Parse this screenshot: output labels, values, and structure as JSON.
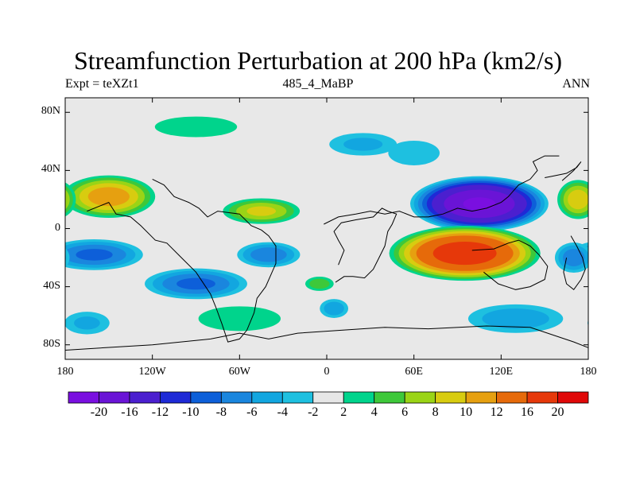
{
  "title": "Streamfunction Perturbation at 200 hPa (km2/s)",
  "subtitle_left": "Expt = teXZt1",
  "subtitle_center": "485_4_MaBP",
  "subtitle_right": "ANN",
  "map": {
    "projection": "cylindrical equidistant",
    "lon_range": [
      -180,
      180
    ],
    "lat_range": [
      -90,
      90
    ],
    "lon_ticks": [
      {
        "value": -180,
        "label": "180"
      },
      {
        "value": -120,
        "label": "120W"
      },
      {
        "value": -60,
        "label": "60W"
      },
      {
        "value": 0,
        "label": "0"
      },
      {
        "value": 60,
        "label": "60E"
      },
      {
        "value": 120,
        "label": "120E"
      },
      {
        "value": 180,
        "label": "180"
      }
    ],
    "lat_ticks": [
      {
        "value": 80,
        "label": "80N"
      },
      {
        "value": 40,
        "label": "40N"
      },
      {
        "value": 0,
        "label": "0"
      },
      {
        "value": -40,
        "label": "40S"
      },
      {
        "value": -80,
        "label": "80S"
      }
    ],
    "background_color": "#e8e8e8",
    "features": [
      {
        "lon": 105,
        "lat": 17,
        "rx": 50,
        "ry": 20,
        "peak": -20,
        "desc": "strong negative center over Asia"
      },
      {
        "lon": 95,
        "lat": -17,
        "rx": 55,
        "ry": 20,
        "peak": 18,
        "desc": "strong positive center over Indian Ocean"
      },
      {
        "lon": -150,
        "lat": 22,
        "rx": 35,
        "ry": 16,
        "peak": 11,
        "desc": "positive center west Pacific"
      },
      {
        "lon": -45,
        "lat": 12,
        "rx": 30,
        "ry": 10,
        "peak": 8,
        "desc": "positive center Atlantic"
      },
      {
        "lon": 173,
        "lat": 20,
        "rx": 16,
        "ry": 15,
        "peak": 9,
        "desc": "positive center dateline"
      },
      {
        "lon": -160,
        "lat": -18,
        "rx": 38,
        "ry": 12,
        "peak": -8,
        "desc": "negative center South Pacific"
      },
      {
        "lon": -90,
        "lat": -38,
        "rx": 40,
        "ry": 12,
        "peak": -8,
        "desc": "negative center south east Pacific"
      },
      {
        "lon": -40,
        "lat": -18,
        "rx": 25,
        "ry": 10,
        "peak": -7,
        "desc": "negative center south Atlantic"
      },
      {
        "lon": -165,
        "lat": -65,
        "rx": 20,
        "ry": 10,
        "peak": -4,
        "desc": "negative southwest"
      },
      {
        "lon": -90,
        "lat": 70,
        "rx": 40,
        "ry": 10,
        "peak": 3,
        "desc": "positive northern band"
      },
      {
        "lon": 25,
        "lat": 58,
        "rx": 30,
        "ry": 10,
        "peak": -4,
        "desc": "negative north of Europe"
      },
      {
        "lon": -60,
        "lat": -62,
        "rx": 40,
        "ry": 12,
        "peak": 3,
        "desc": "positive Southern Ocean"
      },
      {
        "lon": -5,
        "lat": -38,
        "rx": 12,
        "ry": 6,
        "peak": 5,
        "desc": "positive South Atlantic"
      },
      {
        "lon": 5,
        "lat": -55,
        "rx": 12,
        "ry": 8,
        "peak": -5,
        "desc": "negative South Atlantic"
      },
      {
        "lon": 130,
        "lat": -62,
        "rx": 40,
        "ry": 12,
        "peak": -5,
        "desc": "negative Southern Ocean Australia"
      },
      {
        "lon": 170,
        "lat": -20,
        "rx": 15,
        "ry": 12,
        "peak": -7,
        "desc": "negative south Pacific dateline"
      },
      {
        "lon": 60,
        "lat": 52,
        "rx": 25,
        "ry": 12,
        "peak": -3,
        "desc": "negative Eurasia"
      }
    ]
  },
  "colorbar": {
    "labels": [
      "-20",
      "-16",
      "-12",
      "-10",
      "-8",
      "-6",
      "-4",
      "-2",
      "2",
      "4",
      "6",
      "8",
      "10",
      "12",
      "16",
      "20"
    ],
    "levels": [
      -20,
      -16,
      -12,
      -10,
      -8,
      -6,
      -4,
      -2,
      2,
      4,
      6,
      8,
      10,
      12,
      16,
      20
    ],
    "colors": [
      "#7a0fe0",
      "#6a14d6",
      "#4b1fcf",
      "#1e2ad6",
      "#0d5fd9",
      "#1a86de",
      "#12a6e0",
      "#1ec0e0",
      "#e6e6e6",
      "#00d48c",
      "#3ec83a",
      "#9ad416",
      "#d8cc10",
      "#e6a010",
      "#e66a0a",
      "#e6380a",
      "#e00808"
    ]
  },
  "continents": [
    {
      "name": "Americas",
      "points": [
        [
          -165,
          12
        ],
        [
          -150,
          18
        ],
        [
          -145,
          10
        ],
        [
          -135,
          8
        ],
        [
          -128,
          2
        ],
        [
          -118,
          -8
        ],
        [
          -110,
          -10
        ],
        [
          -100,
          -20
        ],
        [
          -90,
          -30
        ],
        [
          -80,
          -45
        ],
        [
          -76,
          -55
        ],
        [
          -72,
          -66
        ],
        [
          -68,
          -78
        ],
        [
          -60,
          -76
        ],
        [
          -55,
          -70
        ],
        [
          -50,
          -58
        ],
        [
          -48,
          -48
        ],
        [
          -42,
          -40
        ],
        [
          -35,
          -24
        ],
        [
          -35,
          -12
        ],
        [
          -40,
          -5
        ],
        [
          -45,
          -1
        ],
        [
          -52,
          2
        ],
        [
          -60,
          10
        ],
        [
          -75,
          12
        ],
        [
          -82,
          8
        ],
        [
          -88,
          14
        ],
        [
          -95,
          18
        ],
        [
          -105,
          22
        ],
        [
          -112,
          30
        ],
        [
          -120,
          34
        ]
      ]
    },
    {
      "name": "Africa",
      "points": [
        [
          6,
          -37
        ],
        [
          12,
          -33
        ],
        [
          18,
          -33
        ],
        [
          26,
          -34
        ],
        [
          32,
          -28
        ],
        [
          36,
          -20
        ],
        [
          40,
          -12
        ],
        [
          42,
          -2
        ],
        [
          45,
          3
        ],
        [
          48,
          10
        ],
        [
          42,
          12
        ],
        [
          38,
          14
        ],
        [
          32,
          8
        ],
        [
          20,
          6
        ],
        [
          10,
          4
        ],
        [
          5,
          -2
        ],
        [
          8,
          -8
        ],
        [
          12,
          -15
        ],
        [
          8,
          -25
        ]
      ]
    },
    {
      "name": "Antarctica",
      "points": [
        [
          -185,
          -84
        ],
        [
          -120,
          -80
        ],
        [
          -80,
          -76
        ],
        [
          -60,
          -72
        ],
        [
          -40,
          -76
        ],
        [
          -20,
          -72
        ],
        [
          10,
          -70
        ],
        [
          40,
          -68
        ],
        [
          70,
          -69
        ],
        [
          110,
          -67
        ],
        [
          140,
          -68
        ],
        [
          170,
          -78
        ],
        [
          185,
          -84
        ]
      ]
    },
    {
      "name": "Eurasia",
      "points": [
        [
          -2,
          3
        ],
        [
          8,
          8
        ],
        [
          20,
          10
        ],
        [
          30,
          12
        ],
        [
          40,
          10
        ],
        [
          50,
          12
        ],
        [
          60,
          8
        ],
        [
          70,
          8
        ],
        [
          80,
          10
        ],
        [
          90,
          14
        ],
        [
          100,
          12
        ],
        [
          110,
          14
        ],
        [
          120,
          18
        ],
        [
          125,
          22
        ],
        [
          132,
          30
        ],
        [
          140,
          34
        ],
        [
          145,
          40
        ],
        [
          142,
          46
        ],
        [
          150,
          50
        ],
        [
          160,
          50
        ]
      ]
    },
    {
      "name": "Australia",
      "points": [
        [
          100,
          -15
        ],
        [
          115,
          -14
        ],
        [
          125,
          -10
        ],
        [
          132,
          -8
        ],
        [
          140,
          -12
        ],
        [
          146,
          -18
        ],
        [
          152,
          -26
        ],
        [
          150,
          -35
        ],
        [
          140,
          -40
        ],
        [
          130,
          -42
        ],
        [
          118,
          -38
        ],
        [
          108,
          -30
        ]
      ]
    },
    {
      "name": "Pacific Islands",
      "points": [
        [
          168,
          -5
        ],
        [
          172,
          -12
        ],
        [
          176,
          -20
        ],
        [
          178,
          -28
        ],
        [
          175,
          -35
        ],
        [
          170,
          -42
        ],
        [
          165,
          -38
        ],
        [
          163,
          -30
        ],
        [
          165,
          -20
        ]
      ]
    },
    {
      "name": "Greenland",
      "points": [
        [
          150,
          35
        ],
        [
          155,
          36
        ],
        [
          165,
          38
        ],
        [
          172,
          42
        ],
        [
          175,
          46
        ],
        [
          170,
          40
        ],
        [
          162,
          33
        ]
      ]
    }
  ]
}
